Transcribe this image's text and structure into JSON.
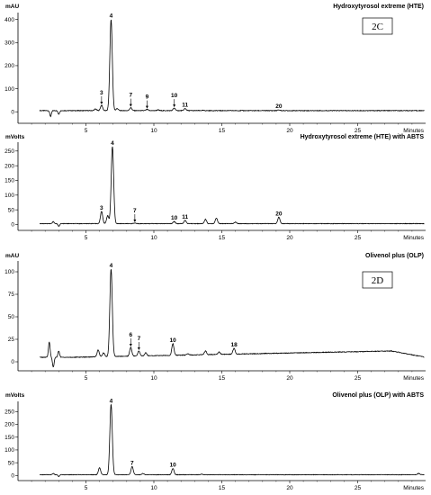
{
  "chart_data": [
    {
      "type": "line",
      "title": "Hydroxytyrosol extreme (HTE)",
      "ylabel": "mAU",
      "xlabel": "Minutes",
      "panel_id": "2C",
      "xlim": [
        0,
        30
      ],
      "ylim": [
        -50,
        430
      ],
      "xticks": [
        5,
        10,
        15,
        20,
        25
      ],
      "yticks": [
        0,
        100,
        200,
        300,
        400
      ],
      "baseline": 5,
      "dips": [
        [
          2.4,
          -20
        ],
        [
          3.0,
          -10
        ]
      ],
      "peaks": [
        {
          "x": 6.15,
          "y": 28,
          "label": "3",
          "arrow": true
        },
        {
          "x": 6.85,
          "y": 400,
          "label": "4",
          "arrow": false
        },
        {
          "x": 8.3,
          "y": 18,
          "label": "7",
          "arrow": true
        },
        {
          "x": 9.5,
          "y": 10,
          "label": "9",
          "arrow": true
        },
        {
          "x": 11.5,
          "y": 16,
          "label": "10",
          "arrow": true
        },
        {
          "x": 12.3,
          "y": 14,
          "label": "11",
          "arrow": false
        },
        {
          "x": 19.2,
          "y": 8,
          "label": "20",
          "arrow": false
        }
      ],
      "minor_peaks": [
        [
          5.7,
          12
        ],
        [
          7.3,
          14
        ],
        [
          10.3,
          8
        ],
        [
          13.6,
          6
        ],
        [
          14.7,
          5
        ]
      ]
    },
    {
      "type": "line",
      "title": "Hydroxytyrosol extreme (HTE) with ABTS",
      "ylabel": "mVolts",
      "xlabel": "Minutes",
      "xlim": [
        0,
        30
      ],
      "ylim": [
        -20,
        280
      ],
      "xticks": [
        5,
        10,
        15,
        20,
        25
      ],
      "yticks": [
        0,
        50,
        100,
        150,
        200,
        250
      ],
      "baseline": 3,
      "dips": [
        [
          2.6,
          10
        ],
        [
          3.0,
          -6
        ]
      ],
      "peaks": [
        {
          "x": 6.15,
          "y": 45,
          "label": "3",
          "arrow": false
        },
        {
          "x": 6.95,
          "y": 265,
          "label": "4",
          "arrow": false
        },
        {
          "x": 8.6,
          "y": 5,
          "label": "7",
          "arrow": true
        },
        {
          "x": 11.5,
          "y": 10,
          "label": "10",
          "arrow": false
        },
        {
          "x": 12.3,
          "y": 14,
          "label": "11",
          "arrow": false
        },
        {
          "x": 19.2,
          "y": 25,
          "label": "20",
          "arrow": false
        }
      ],
      "minor_peaks": [
        [
          6.6,
          30
        ],
        [
          13.8,
          18
        ],
        [
          14.6,
          22
        ],
        [
          16.0,
          8
        ]
      ]
    },
    {
      "type": "line",
      "title": "Olivenol plus (OLP)",
      "ylabel": "mAU",
      "xlabel": "Minutes",
      "panel_id": "2D",
      "xlim": [
        0,
        30
      ],
      "ylim": [
        -10,
        112
      ],
      "xticks": [
        5,
        10,
        15,
        20,
        25
      ],
      "yticks": [
        0,
        25,
        50,
        75,
        100
      ],
      "baseline": 5,
      "baseline_end": 12,
      "dips": [
        [
          2.3,
          22
        ],
        [
          2.6,
          -6
        ],
        [
          3.0,
          12
        ]
      ],
      "peaks": [
        {
          "x": 6.85,
          "y": 103,
          "label": "4",
          "arrow": false
        },
        {
          "x": 8.3,
          "y": 16,
          "label": "6",
          "arrow": true
        },
        {
          "x": 8.9,
          "y": 12,
          "label": "7",
          "arrow": true
        },
        {
          "x": 11.4,
          "y": 20,
          "label": "10",
          "arrow": false
        },
        {
          "x": 15.9,
          "y": 15,
          "label": "18",
          "arrow": false
        }
      ],
      "minor_peaks": [
        [
          5.9,
          13
        ],
        [
          6.3,
          10
        ],
        [
          9.4,
          10
        ],
        [
          12.5,
          9
        ],
        [
          13.8,
          12
        ],
        [
          14.8,
          11
        ]
      ]
    },
    {
      "type": "line",
      "title": "Olivenol plus (OLP) with ABTS",
      "ylabel": "mVolts",
      "xlabel": "Minutes",
      "xlim": [
        0,
        30
      ],
      "ylim": [
        -20,
        290
      ],
      "xticks": [
        5,
        10,
        15,
        20,
        25
      ],
      "yticks": [
        0,
        50,
        100,
        150,
        200,
        250
      ],
      "baseline": 3,
      "dips": [
        [
          2.6,
          8
        ],
        [
          3.0,
          -4
        ]
      ],
      "peaks": [
        {
          "x": 6.0,
          "y": 30,
          "label": "",
          "arrow": false
        },
        {
          "x": 6.85,
          "y": 278,
          "label": "4",
          "arrow": false
        },
        {
          "x": 8.4,
          "y": 35,
          "label": "7",
          "arrow": false
        },
        {
          "x": 11.4,
          "y": 28,
          "label": "10",
          "arrow": false
        }
      ],
      "minor_peaks": [
        [
          9.2,
          8
        ],
        [
          13.5,
          5
        ],
        [
          29.5,
          8
        ]
      ]
    }
  ]
}
